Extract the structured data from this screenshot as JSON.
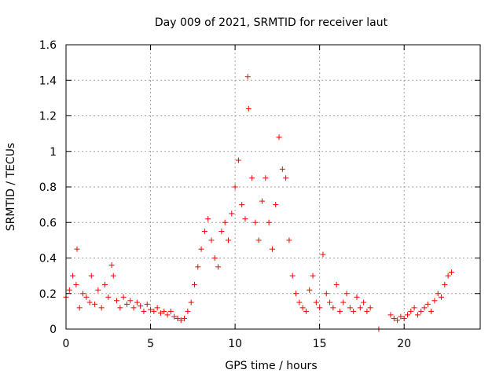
{
  "chart_data": {
    "type": "scatter",
    "title": "Day 009 of 2021, SRMTID for receiver laut",
    "xlabel": "GPS time / hours",
    "ylabel": "SRMTID / TECUs",
    "xlim": [
      0,
      24.5
    ],
    "ylim": [
      0,
      1.6
    ],
    "x_ticks": [
      0,
      5,
      10,
      15,
      20
    ],
    "x_tick_labels": [
      "0",
      "5",
      "10",
      "15",
      "20"
    ],
    "y_ticks": [
      0,
      0.2,
      0.4,
      0.6,
      0.8,
      1.0,
      1.2,
      1.4,
      1.6
    ],
    "y_tick_labels": [
      "0",
      "0.2",
      "0.4",
      "0.6",
      "0.8",
      "1",
      "1.2",
      "1.4",
      "1.6"
    ],
    "grid": true,
    "marker": "plus",
    "color": "#ff0000",
    "series": [
      {
        "name": "SRMTID",
        "x": [
          0.0,
          0.2,
          0.4,
          0.6,
          0.65,
          0.8,
          1.0,
          1.2,
          1.4,
          1.5,
          1.7,
          1.9,
          2.1,
          2.3,
          2.5,
          2.7,
          2.8,
          3.0,
          3.2,
          3.4,
          3.6,
          3.8,
          4.0,
          4.2,
          4.4,
          4.6,
          4.8,
          5.0,
          5.2,
          5.4,
          5.6,
          5.8,
          6.0,
          6.2,
          6.4,
          6.6,
          6.8,
          7.0,
          7.2,
          7.4,
          7.6,
          7.8,
          8.0,
          8.2,
          8.4,
          8.6,
          8.8,
          9.0,
          9.2,
          9.4,
          9.6,
          9.8,
          10.0,
          10.2,
          10.4,
          10.6,
          10.75,
          10.8,
          11.0,
          11.2,
          11.4,
          11.6,
          11.8,
          12.0,
          12.2,
          12.4,
          12.6,
          12.8,
          13.0,
          13.2,
          13.4,
          13.6,
          13.8,
          14.0,
          14.2,
          14.4,
          14.6,
          14.8,
          15.0,
          15.2,
          15.4,
          15.6,
          15.8,
          16.0,
          16.2,
          16.4,
          16.6,
          16.8,
          17.0,
          17.2,
          17.4,
          17.6,
          17.8,
          18.0,
          18.5,
          19.2,
          19.4,
          19.6,
          19.8,
          20.0,
          20.2,
          20.4,
          20.6,
          20.8,
          21.0,
          21.2,
          21.4,
          21.6,
          21.8,
          22.0,
          22.2,
          22.4,
          22.6,
          22.8
        ],
        "y": [
          0.18,
          0.22,
          0.3,
          0.25,
          0.45,
          0.12,
          0.2,
          0.18,
          0.15,
          0.3,
          0.14,
          0.22,
          0.12,
          0.25,
          0.18,
          0.36,
          0.3,
          0.16,
          0.12,
          0.18,
          0.14,
          0.16,
          0.12,
          0.15,
          0.13,
          0.1,
          0.14,
          0.11,
          0.1,
          0.12,
          0.09,
          0.1,
          0.08,
          0.1,
          0.07,
          0.06,
          0.05,
          0.06,
          0.1,
          0.15,
          0.25,
          0.35,
          0.45,
          0.55,
          0.62,
          0.5,
          0.4,
          0.35,
          0.55,
          0.6,
          0.5,
          0.65,
          0.8,
          0.95,
          0.7,
          0.62,
          1.42,
          1.24,
          0.85,
          0.6,
          0.5,
          0.72,
          0.85,
          0.6,
          0.45,
          0.7,
          1.08,
          0.9,
          0.85,
          0.5,
          0.3,
          0.2,
          0.15,
          0.12,
          0.1,
          0.22,
          0.3,
          0.15,
          0.12,
          0.42,
          0.2,
          0.15,
          0.12,
          0.25,
          0.1,
          0.15,
          0.2,
          0.12,
          0.1,
          0.18,
          0.12,
          0.15,
          0.1,
          0.12,
          0.0,
          0.08,
          0.06,
          0.05,
          0.07,
          0.06,
          0.08,
          0.1,
          0.12,
          0.08,
          0.1,
          0.12,
          0.14,
          0.1,
          0.16,
          0.2,
          0.18,
          0.25,
          0.3,
          0.32
        ]
      }
    ]
  }
}
